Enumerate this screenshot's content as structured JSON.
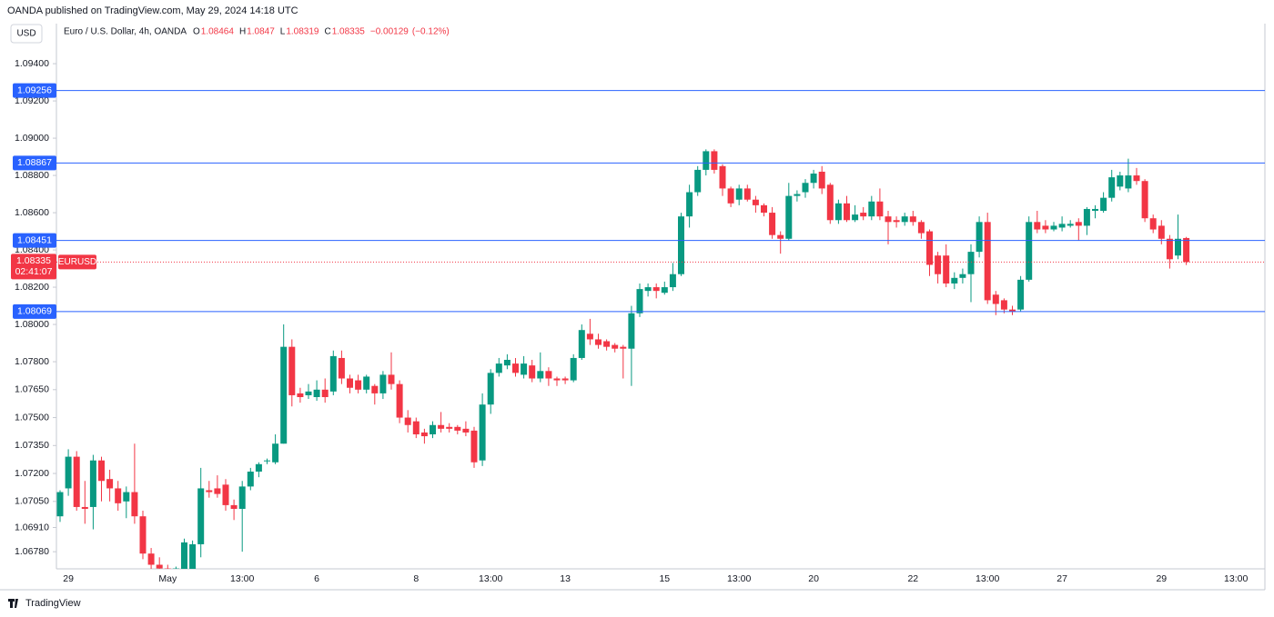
{
  "header": {
    "published": "OANDA published on TradingView.com, May 29, 2024 14:18 UTC",
    "currency": "USD",
    "symbol_line": "Euro / U.S. Dollar, 4h, OANDA",
    "ohlc_labels": [
      "O",
      "H",
      "L",
      "C"
    ],
    "change": {
      "value": -0.00129,
      "label": "−0.00129"
    },
    "change_percent": {
      "value": -0.12,
      "label": "(−0.12%)"
    },
    "countdown": "02:41:07"
  },
  "footer": {
    "brand": "TradingView"
  },
  "chart_data": {
    "type": "candlestick",
    "categories": [
      null,
      "29",
      null,
      null,
      null,
      null,
      null,
      null,
      null,
      null,
      null,
      null,
      null,
      "May",
      null,
      null,
      null,
      null,
      null,
      null,
      null,
      null,
      "13:00",
      null,
      null,
      null,
      null,
      null,
      null,
      null,
      null,
      "6",
      null,
      null,
      null,
      null,
      null,
      null,
      null,
      null,
      null,
      null,
      null,
      "8",
      null,
      null,
      null,
      null,
      null,
      null,
      null,
      null,
      "13:00",
      null,
      null,
      null,
      null,
      null,
      null,
      null,
      null,
      "13",
      null,
      null,
      null,
      null,
      null,
      null,
      null,
      null,
      null,
      null,
      null,
      "15",
      null,
      null,
      null,
      null,
      null,
      null,
      null,
      null,
      "13:00",
      null,
      null,
      null,
      null,
      null,
      null,
      null,
      null,
      "20",
      null,
      null,
      null,
      null,
      null,
      null,
      null,
      null,
      null,
      null,
      null,
      "22",
      null,
      null,
      null,
      null,
      null,
      null,
      null,
      null,
      "13:00",
      null,
      null,
      null,
      null,
      null,
      null,
      null,
      null,
      "27",
      null,
      null,
      null,
      null,
      null,
      null,
      null,
      null,
      null,
      null,
      null,
      "29",
      null,
      null,
      null,
      null,
      null,
      null,
      null,
      null,
      "13:00"
    ],
    "series": [
      {
        "name": "EURUSD",
        "up_color": "#089981",
        "down_color": "#f23645",
        "open": [
          1.0697,
          1.0712,
          1.0729,
          1.0702,
          1.0702,
          1.0727,
          1.0717,
          1.0712,
          1.0705,
          1.071,
          1.0697,
          1.0677,
          1.0671,
          1.0669,
          1.0664,
          1.0668,
          1.0667,
          1.0682,
          1.0711,
          1.0712,
          1.0714,
          1.0703,
          1.0701,
          1.0713,
          1.0721,
          1.0727,
          1.0726,
          1.0736,
          1.0788,
          1.0763,
          1.0762,
          1.0761,
          1.0765,
          1.0764,
          1.0782,
          1.0771,
          1.077,
          1.0765,
          1.0767,
          1.0763,
          1.0773,
          1.0768,
          1.075,
          1.0748,
          1.0742,
          1.0741,
          1.0746,
          1.0745,
          1.0745,
          1.0744,
          1.0743,
          1.0727,
          1.0757,
          1.0774,
          1.0778,
          1.0779,
          1.0773,
          1.0778,
          1.0771,
          1.0775,
          1.0771,
          1.0771,
          1.077,
          1.0782,
          1.0795,
          1.0792,
          1.0791,
          1.0789,
          1.0788,
          1.0787,
          1.0806,
          1.0818,
          1.082,
          1.0817,
          1.082,
          1.0827,
          1.0858,
          1.0871,
          1.0883,
          1.0893,
          1.0885,
          1.0873,
          1.0867,
          1.0873,
          1.0867,
          1.0864,
          1.086,
          1.0848,
          1.0846,
          1.0869,
          1.0871,
          1.0876,
          1.0882,
          1.0875,
          1.0856,
          1.0865,
          1.0856,
          1.086,
          1.0858,
          1.0866,
          1.0858,
          1.0856,
          1.0855,
          1.0858,
          1.0855,
          1.085,
          1.0837,
          1.0837,
          1.0822,
          1.0825,
          1.0827,
          1.0839,
          1.0855,
          1.0816,
          1.0813,
          1.0808,
          1.0808,
          1.0824,
          1.0855,
          1.0853,
          1.0851,
          1.0852,
          1.0853,
          1.0855,
          1.0853,
          1.0861,
          1.0861,
          1.0868,
          1.0874,
          1.0873,
          1.088,
          1.0877,
          1.0857,
          1.0853,
          1.0846,
          1.0837,
          1.08464,
          null,
          null,
          null,
          null,
          null,
          null
        ],
        "high": [
          1.0711,
          1.0733,
          1.0732,
          1.0716,
          1.073,
          1.0729,
          1.0722,
          1.0716,
          1.0713,
          1.0736,
          1.07,
          1.068,
          1.0675,
          1.0671,
          1.067,
          1.0685,
          1.0684,
          1.0723,
          1.0716,
          1.0719,
          1.0717,
          1.0706,
          1.0716,
          1.0723,
          1.0726,
          1.0728,
          1.0741,
          1.08,
          1.0792,
          1.0766,
          1.0768,
          1.077,
          1.0771,
          1.0786,
          1.0786,
          1.0773,
          1.0773,
          1.0773,
          1.0768,
          1.0775,
          1.0785,
          1.077,
          1.0754,
          1.075,
          1.0744,
          1.0748,
          1.0753,
          1.0747,
          1.0746,
          1.0748,
          1.0745,
          1.0763,
          1.0776,
          1.0782,
          1.0784,
          1.0782,
          1.0783,
          1.0781,
          1.0785,
          1.0777,
          1.0772,
          1.0772,
          1.0784,
          1.08,
          1.0803,
          1.0795,
          1.0792,
          1.079,
          1.0789,
          1.081,
          1.0822,
          1.0822,
          1.0822,
          1.0823,
          1.0833,
          1.086,
          1.0875,
          1.0885,
          1.0894,
          1.0894,
          1.0886,
          1.0874,
          1.0875,
          1.0875,
          1.0869,
          1.0865,
          1.0863,
          1.085,
          1.0876,
          1.0872,
          1.0878,
          1.0883,
          1.0885,
          1.0876,
          1.0867,
          1.0869,
          1.0864,
          1.0863,
          1.0869,
          1.0873,
          1.0861,
          1.0858,
          1.086,
          1.0861,
          1.0856,
          1.0851,
          1.0839,
          1.0843,
          1.0828,
          1.083,
          1.0843,
          1.0858,
          1.086,
          1.0818,
          1.0814,
          1.081,
          1.0826,
          1.0858,
          1.0861,
          1.0856,
          1.0855,
          1.0858,
          1.0856,
          1.0857,
          1.0863,
          1.0864,
          1.0871,
          1.0883,
          1.0882,
          1.0889,
          1.0884,
          1.0878,
          1.0859,
          1.0856,
          1.0848,
          1.0859,
          1.0847,
          null,
          null,
          null,
          null,
          null,
          null
        ],
        "low": [
          1.0694,
          1.0708,
          1.07,
          1.0693,
          1.069,
          1.0705,
          1.0705,
          1.07,
          1.0696,
          1.0693,
          1.0674,
          1.0668,
          1.0667,
          1.0665,
          1.0662,
          1.0666,
          1.0665,
          1.0675,
          1.0707,
          1.0707,
          1.07,
          1.0695,
          1.0678,
          1.0711,
          1.0718,
          1.0725,
          1.0725,
          1.0736,
          1.0756,
          1.0758,
          1.076,
          1.0759,
          1.0758,
          1.0762,
          1.0768,
          1.0763,
          1.0763,
          1.0763,
          1.0757,
          1.076,
          1.0765,
          1.0747,
          1.0742,
          1.0739,
          1.0736,
          1.0739,
          1.0742,
          1.0742,
          1.0741,
          1.074,
          1.0723,
          1.0724,
          1.0752,
          1.0772,
          1.0776,
          1.0772,
          1.0771,
          1.0769,
          1.0769,
          1.0767,
          1.0767,
          1.0768,
          1.0769,
          1.0781,
          1.0789,
          1.0787,
          1.0786,
          1.0785,
          1.0771,
          1.0767,
          1.0804,
          1.0815,
          1.0814,
          1.0816,
          1.0818,
          1.0826,
          1.0852,
          1.0869,
          1.088,
          1.0881,
          1.0869,
          1.0863,
          1.0864,
          1.0866,
          1.086,
          1.0858,
          1.0846,
          1.0838,
          1.0845,
          1.0866,
          1.0868,
          1.0873,
          1.087,
          1.0854,
          1.0854,
          1.0855,
          1.0855,
          1.0856,
          1.0856,
          1.0856,
          1.0843,
          1.0852,
          1.0853,
          1.0853,
          1.0846,
          1.0826,
          1.0822,
          1.082,
          1.0819,
          1.0822,
          1.0812,
          1.0836,
          1.0811,
          1.0805,
          1.0806,
          1.0805,
          1.0807,
          1.0823,
          1.0849,
          1.0849,
          1.085,
          1.085,
          1.0852,
          1.0845,
          1.0848,
          1.0857,
          1.086,
          1.0866,
          1.0872,
          1.0871,
          1.0875,
          1.0855,
          1.0849,
          1.0843,
          1.083,
          1.0835,
          1.08319,
          null,
          null,
          null,
          null,
          null,
          null
        ],
        "close": [
          1.071,
          1.0729,
          1.0702,
          1.0701,
          1.0727,
          1.0716,
          1.0712,
          1.0704,
          1.071,
          1.0697,
          1.0677,
          1.0671,
          1.0669,
          1.0666,
          1.0669,
          1.0683,
          1.0682,
          1.0712,
          1.071,
          1.0709,
          1.0703,
          1.0701,
          1.0713,
          1.0721,
          1.0725,
          1.0727,
          1.0736,
          1.0788,
          1.0762,
          1.0761,
          1.0764,
          1.0765,
          1.0761,
          1.0783,
          1.0771,
          1.0766,
          1.0765,
          1.0772,
          1.0763,
          1.0773,
          1.0768,
          1.075,
          1.0746,
          1.0741,
          1.074,
          1.0746,
          1.0744,
          1.0744,
          1.0743,
          1.0742,
          1.0726,
          1.0757,
          1.0774,
          1.0779,
          1.0781,
          1.0774,
          1.0779,
          1.0771,
          1.0775,
          1.0771,
          1.077,
          1.077,
          1.0782,
          1.0797,
          1.0792,
          1.0789,
          1.0788,
          1.0787,
          1.0787,
          1.0806,
          1.0819,
          1.082,
          1.0818,
          1.082,
          1.0827,
          1.0858,
          1.0871,
          1.0883,
          1.0893,
          1.0883,
          1.0873,
          1.0865,
          1.0873,
          1.0867,
          1.0864,
          1.086,
          1.0848,
          1.0846,
          1.0869,
          1.087,
          1.0876,
          1.0881,
          1.0873,
          1.0856,
          1.0865,
          1.0856,
          1.0859,
          1.0858,
          1.0866,
          1.0858,
          1.0855,
          1.0855,
          1.0858,
          1.0855,
          1.0849,
          1.0832,
          1.0827,
          1.0822,
          1.0825,
          1.0827,
          1.0839,
          1.0855,
          1.0813,
          1.0811,
          1.0808,
          1.0807,
          1.0824,
          1.0855,
          1.0851,
          1.0851,
          1.0853,
          1.0854,
          1.0854,
          1.0853,
          1.0862,
          1.0862,
          1.0868,
          1.0879,
          1.088,
          1.088,
          1.0877,
          1.0857,
          1.0851,
          1.0846,
          1.0835,
          1.0846,
          1.08335,
          null,
          null,
          null,
          null,
          null,
          null
        ]
      }
    ],
    "levels": [
      1.09256,
      1.08867,
      1.08451,
      1.08069
    ],
    "level_color": "#2962ff",
    "ylim": [
      1.06688,
      1.09615
    ],
    "yticks": [
      {
        "value": 1.094,
        "label": "1.09400"
      },
      {
        "value": 1.092,
        "label": "1.09200"
      },
      {
        "value": 1.09,
        "label": "1.09000"
      },
      {
        "value": 1.088,
        "label": "1.08800"
      },
      {
        "value": 1.086,
        "label": "1.08600"
      },
      {
        "value": 1.084,
        "label": "1.08400"
      },
      {
        "value": 1.082,
        "label": "1.08200"
      },
      {
        "value": 1.08,
        "label": "1.08000"
      },
      {
        "value": 1.078,
        "label": "1.07800"
      },
      {
        "value": 1.0765,
        "label": "1.07650"
      },
      {
        "value": 1.075,
        "label": "1.07500"
      },
      {
        "value": 1.0735,
        "label": "1.07350"
      },
      {
        "value": 1.072,
        "label": "1.07200"
      },
      {
        "value": 1.0705,
        "label": "1.07050"
      },
      {
        "value": 1.0691,
        "label": "1.06910"
      },
      {
        "value": 1.0678,
        "label": "1.06780"
      }
    ],
    "grid": false
  }
}
